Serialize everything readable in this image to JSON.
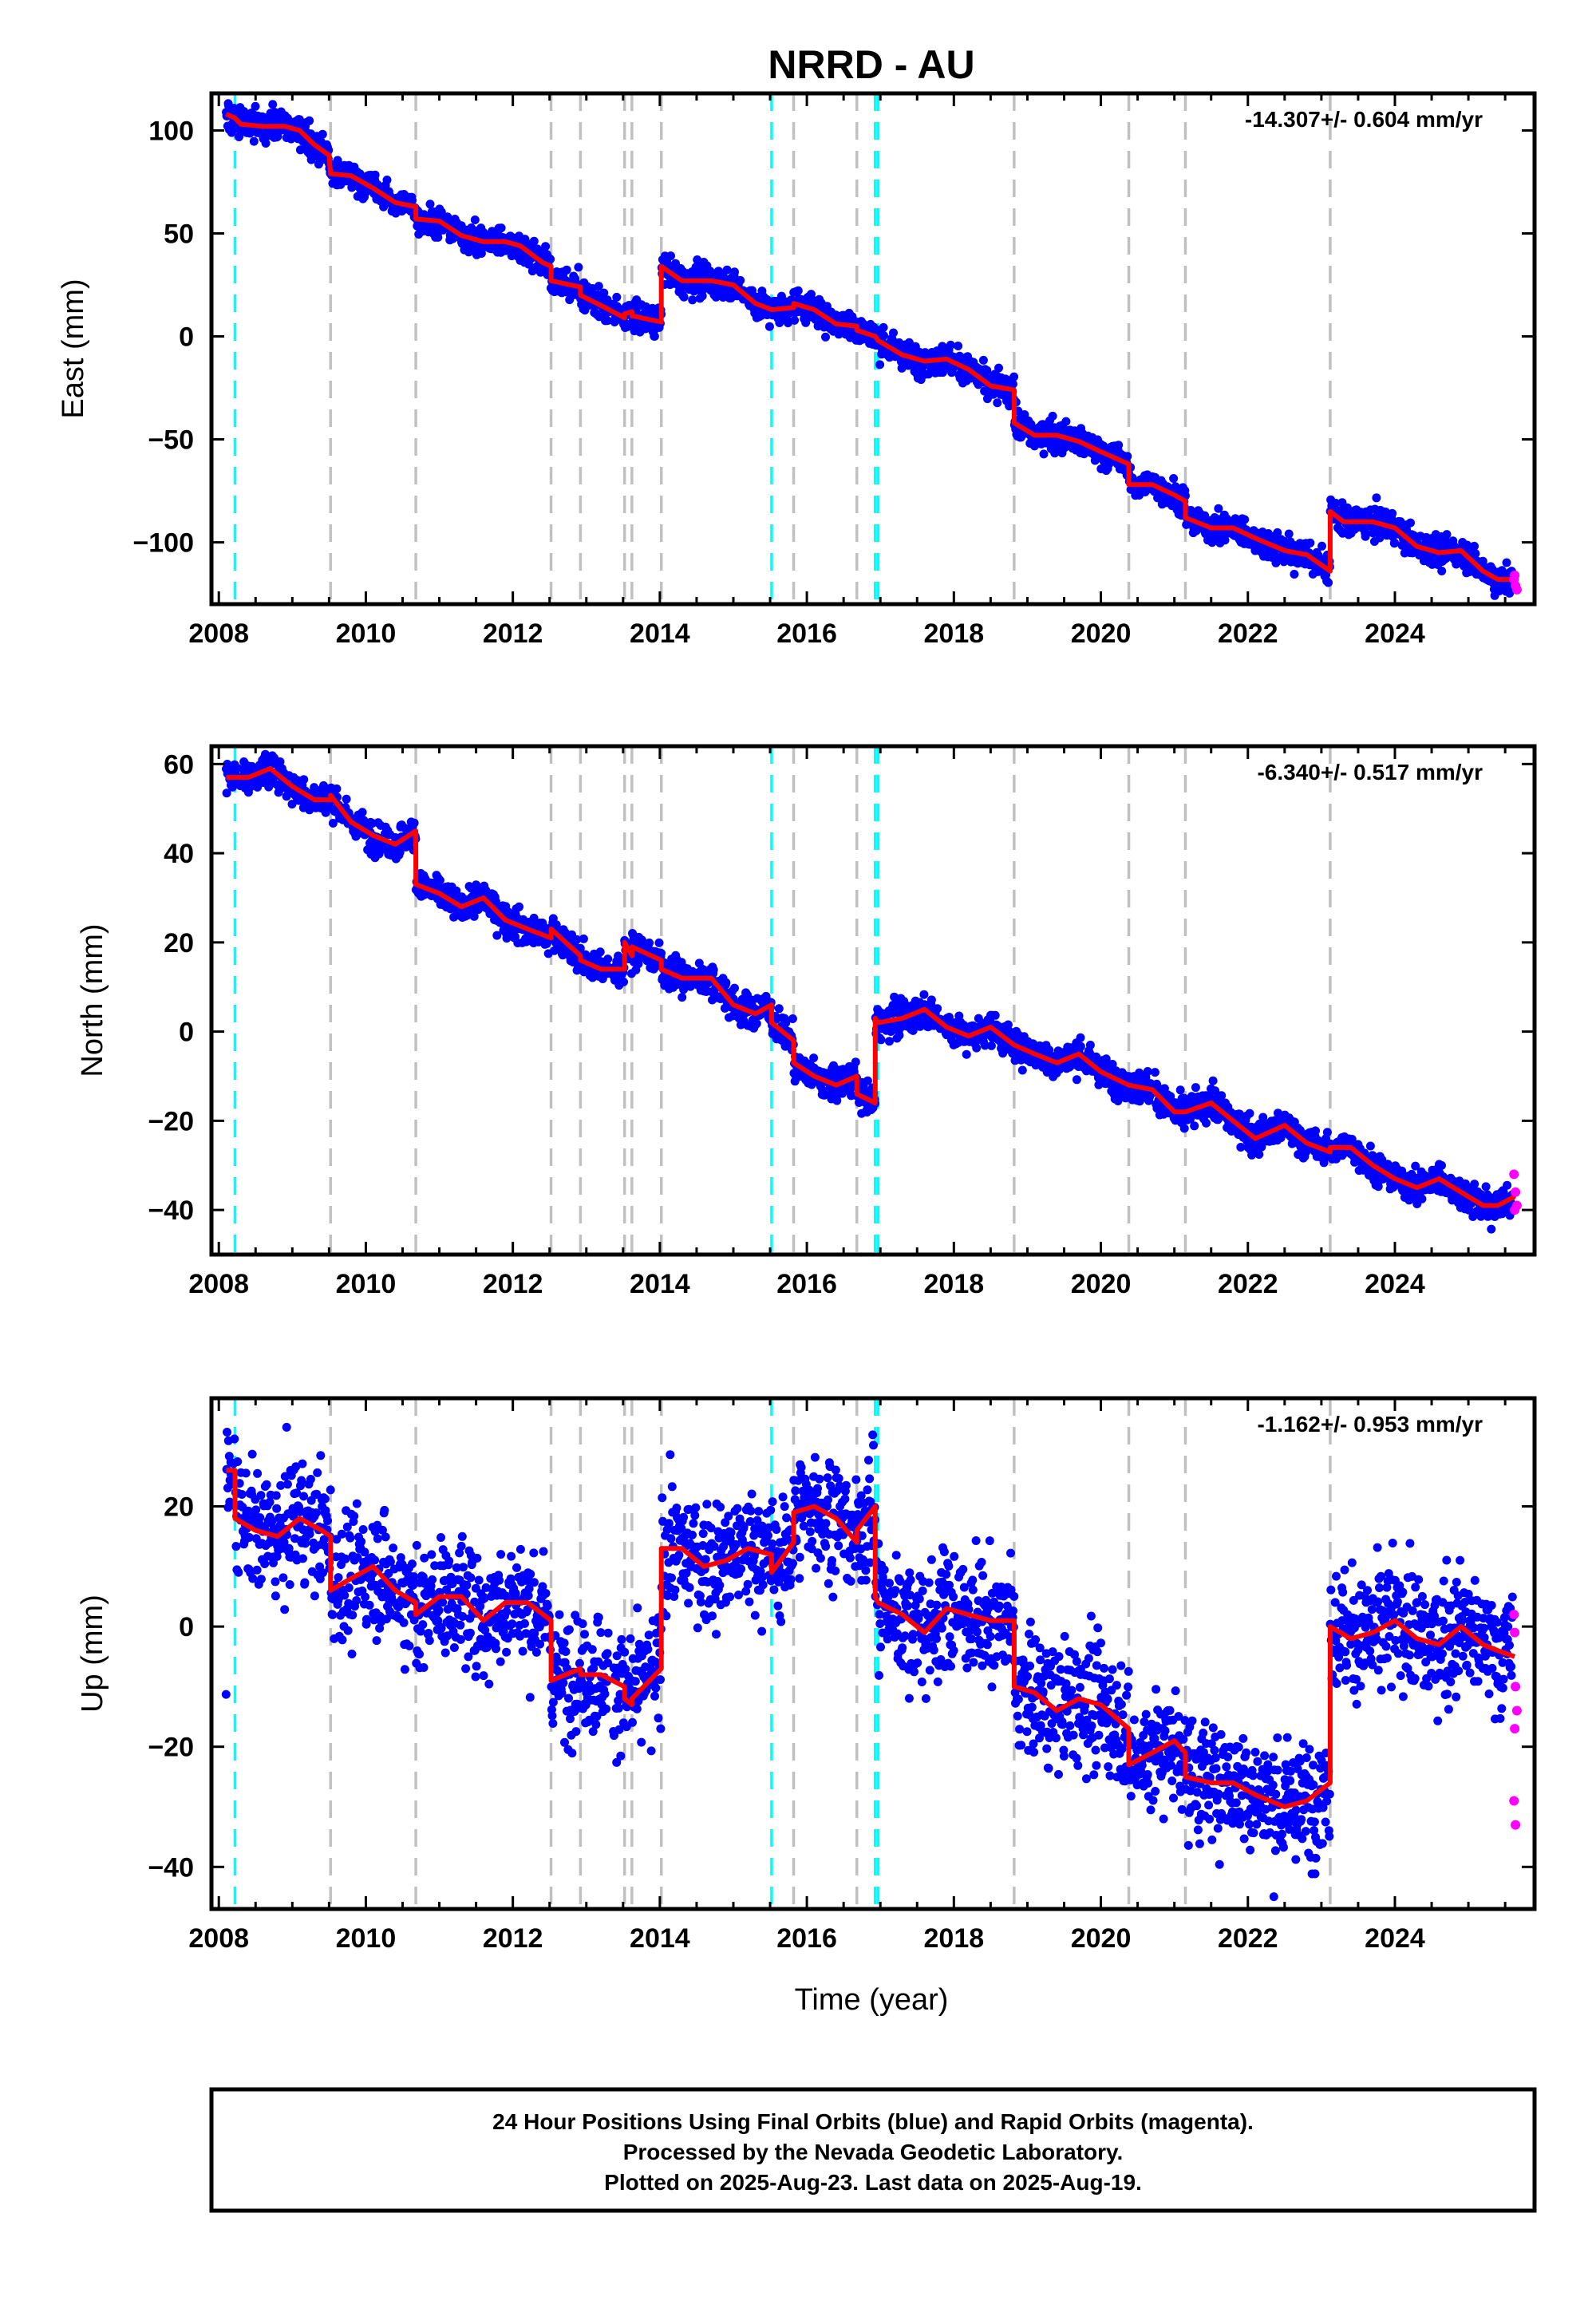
{
  "chart_data": {
    "type": "scatter",
    "title": "NRRD - AU",
    "xlabel": "Time (year)",
    "xlim": [
      2007.9,
      2025.9
    ],
    "x_ticks": [
      2008,
      2010,
      2012,
      2014,
      2016,
      2018,
      2020,
      2022,
      2024
    ],
    "x_tick_labels": [
      "2008",
      "2010",
      "2012",
      "2014",
      "2016",
      "2018",
      "2020",
      "2022",
      "2024"
    ],
    "grid": false,
    "colors": {
      "final_orbits": "#0000ff",
      "rapid_orbits": "#ff00ff",
      "model": "#ff0000",
      "equipment_change": "#00ffff",
      "possible_offset": "#c0c0c0"
    },
    "steps_cyan": [
      2008.22,
      2015.52,
      2016.93,
      2016.97
    ],
    "steps_gray": [
      2009.52,
      2010.68,
      2012.52,
      2012.92,
      2013.52,
      2013.62,
      2014.02,
      2015.82,
      2016.68,
      2018.82,
      2020.38,
      2021.15,
      2023.12
    ],
    "panels": [
      {
        "ylabel": "East (mm)",
        "ylim": [
          -130,
          118
        ],
        "y_ticks": [
          100,
          50,
          0,
          -50,
          -100
        ],
        "y_tick_labels": [
          "100",
          "50",
          "0",
          "−50",
          "−100"
        ],
        "rate": "-14.307+/- 0.604 mm/yr",
        "scatter": 5,
        "model": [
          [
            2008.1,
            108
          ],
          [
            2008.22,
            106
          ],
          [
            2008.3,
            103
          ],
          [
            2008.6,
            102
          ],
          [
            2008.9,
            102
          ],
          [
            2009.1,
            100
          ],
          [
            2009.3,
            93
          ],
          [
            2009.5,
            88
          ],
          [
            2009.52,
            79
          ],
          [
            2009.8,
            78
          ],
          [
            2010.1,
            72
          ],
          [
            2010.4,
            65
          ],
          [
            2010.68,
            63
          ],
          [
            2010.68,
            57
          ],
          [
            2011.0,
            56
          ],
          [
            2011.3,
            49
          ],
          [
            2011.6,
            46
          ],
          [
            2011.9,
            46
          ],
          [
            2012.1,
            44
          ],
          [
            2012.4,
            36
          ],
          [
            2012.52,
            34
          ],
          [
            2012.52,
            27
          ],
          [
            2012.92,
            24
          ],
          [
            2012.92,
            20
          ],
          [
            2013.2,
            15
          ],
          [
            2013.52,
            9
          ],
          [
            2013.52,
            11
          ],
          [
            2013.62,
            12
          ],
          [
            2013.62,
            10
          ],
          [
            2014.02,
            7
          ],
          [
            2014.02,
            34
          ],
          [
            2014.3,
            27
          ],
          [
            2014.7,
            27
          ],
          [
            2015.0,
            25
          ],
          [
            2015.3,
            16
          ],
          [
            2015.52,
            13
          ],
          [
            2015.52,
            13
          ],
          [
            2015.82,
            14
          ],
          [
            2015.82,
            16
          ],
          [
            2016.1,
            13
          ],
          [
            2016.4,
            6
          ],
          [
            2016.68,
            5
          ],
          [
            2016.68,
            3
          ],
          [
            2016.93,
            0
          ],
          [
            2016.97,
            -2
          ],
          [
            2017.3,
            -9
          ],
          [
            2017.6,
            -12
          ],
          [
            2017.9,
            -11
          ],
          [
            2018.2,
            -16
          ],
          [
            2018.5,
            -24
          ],
          [
            2018.82,
            -26
          ],
          [
            2018.82,
            -42
          ],
          [
            2019.1,
            -48
          ],
          [
            2019.4,
            -48
          ],
          [
            2019.7,
            -51
          ],
          [
            2020.0,
            -56
          ],
          [
            2020.38,
            -62
          ],
          [
            2020.38,
            -72
          ],
          [
            2020.7,
            -72
          ],
          [
            2021.0,
            -77
          ],
          [
            2021.15,
            -80
          ],
          [
            2021.15,
            -88
          ],
          [
            2021.5,
            -93
          ],
          [
            2021.8,
            -93
          ],
          [
            2022.1,
            -98
          ],
          [
            2022.5,
            -104
          ],
          [
            2022.8,
            -106
          ],
          [
            2023.12,
            -114
          ],
          [
            2023.12,
            -85
          ],
          [
            2023.3,
            -90
          ],
          [
            2023.7,
            -90
          ],
          [
            2024.0,
            -93
          ],
          [
            2024.3,
            -102
          ],
          [
            2024.6,
            -105
          ],
          [
            2024.9,
            -104
          ],
          [
            2025.2,
            -114
          ],
          [
            2025.4,
            -118
          ],
          [
            2025.63,
            -118
          ]
        ],
        "rapid": [
          [
            2025.62,
            -118
          ],
          [
            2025.64,
            -121
          ],
          [
            2025.66,
            -123
          ],
          [
            2025.63,
            -116
          ]
        ]
      },
      {
        "ylabel": "North (mm)",
        "ylim": [
          -50,
          64
        ],
        "y_ticks": [
          60,
          40,
          20,
          0,
          -20,
          -40
        ],
        "y_tick_labels": [
          "60",
          "40",
          "20",
          "0",
          "−20",
          "−40"
        ],
        "rate": "-6.340+/- 0.517 mm/yr",
        "scatter": 2.5,
        "model": [
          [
            2008.1,
            57
          ],
          [
            2008.22,
            57
          ],
          [
            2008.4,
            57
          ],
          [
            2008.7,
            59
          ],
          [
            2009.0,
            55
          ],
          [
            2009.3,
            52
          ],
          [
            2009.52,
            52
          ],
          [
            2009.52,
            53
          ],
          [
            2009.8,
            47
          ],
          [
            2010.1,
            44
          ],
          [
            2010.4,
            42
          ],
          [
            2010.68,
            45
          ],
          [
            2010.68,
            33
          ],
          [
            2011.0,
            31
          ],
          [
            2011.3,
            28
          ],
          [
            2011.6,
            30
          ],
          [
            2011.9,
            25
          ],
          [
            2012.2,
            23
          ],
          [
            2012.52,
            21
          ],
          [
            2012.52,
            23
          ],
          [
            2012.92,
            17
          ],
          [
            2012.92,
            16
          ],
          [
            2013.2,
            14
          ],
          [
            2013.52,
            14
          ],
          [
            2013.52,
            20
          ],
          [
            2013.62,
            17
          ],
          [
            2013.62,
            19
          ],
          [
            2014.02,
            16
          ],
          [
            2014.02,
            14
          ],
          [
            2014.3,
            12
          ],
          [
            2014.7,
            12
          ],
          [
            2015.0,
            6
          ],
          [
            2015.3,
            4
          ],
          [
            2015.52,
            6
          ],
          [
            2015.52,
            2
          ],
          [
            2015.82,
            -2
          ],
          [
            2015.82,
            -7
          ],
          [
            2016.1,
            -10
          ],
          [
            2016.4,
            -12
          ],
          [
            2016.68,
            -10
          ],
          [
            2016.68,
            -14
          ],
          [
            2016.93,
            -16
          ],
          [
            2016.93,
            3
          ],
          [
            2016.97,
            2
          ],
          [
            2017.3,
            3
          ],
          [
            2017.6,
            5
          ],
          [
            2017.9,
            1
          ],
          [
            2018.2,
            -1
          ],
          [
            2018.5,
            1
          ],
          [
            2018.82,
            -3
          ],
          [
            2018.82,
            -3
          ],
          [
            2019.1,
            -5
          ],
          [
            2019.4,
            -7
          ],
          [
            2019.7,
            -5
          ],
          [
            2020.0,
            -9
          ],
          [
            2020.38,
            -12
          ],
          [
            2020.38,
            -12
          ],
          [
            2020.7,
            -13
          ],
          [
            2021.0,
            -18
          ],
          [
            2021.15,
            -18
          ],
          [
            2021.15,
            -18
          ],
          [
            2021.5,
            -16
          ],
          [
            2021.8,
            -20
          ],
          [
            2022.1,
            -24
          ],
          [
            2022.5,
            -21
          ],
          [
            2022.8,
            -25
          ],
          [
            2023.12,
            -27
          ],
          [
            2023.12,
            -26
          ],
          [
            2023.4,
            -26
          ],
          [
            2023.7,
            -30
          ],
          [
            2024.0,
            -33
          ],
          [
            2024.3,
            -35
          ],
          [
            2024.6,
            -33
          ],
          [
            2024.9,
            -36
          ],
          [
            2025.2,
            -39
          ],
          [
            2025.4,
            -39
          ],
          [
            2025.63,
            -37
          ]
        ],
        "rapid": [
          [
            2025.62,
            -32
          ],
          [
            2025.64,
            -36
          ],
          [
            2025.66,
            -39
          ],
          [
            2025.63,
            -40
          ]
        ]
      },
      {
        "ylabel": "Up (mm)",
        "ylim": [
          -47,
          38
        ],
        "y_ticks": [
          20,
          0,
          -20,
          -40
        ],
        "y_tick_labels": [
          "20",
          "0",
          "−20",
          "−40"
        ],
        "rate": "-1.162+/- 0.953 mm/yr",
        "scatter": 7,
        "model": [
          [
            2008.1,
            26
          ],
          [
            2008.22,
            26
          ],
          [
            2008.22,
            18
          ],
          [
            2008.5,
            16
          ],
          [
            2008.8,
            15
          ],
          [
            2009.1,
            18
          ],
          [
            2009.4,
            16
          ],
          [
            2009.52,
            15
          ],
          [
            2009.52,
            6
          ],
          [
            2009.8,
            8
          ],
          [
            2010.1,
            10
          ],
          [
            2010.4,
            6
          ],
          [
            2010.68,
            4
          ],
          [
            2010.68,
            2
          ],
          [
            2011.0,
            5
          ],
          [
            2011.3,
            5
          ],
          [
            2011.6,
            1
          ],
          [
            2011.9,
            4
          ],
          [
            2012.2,
            4
          ],
          [
            2012.52,
            1
          ],
          [
            2012.52,
            -9
          ],
          [
            2012.92,
            -7
          ],
          [
            2012.92,
            -8
          ],
          [
            2013.2,
            -8
          ],
          [
            2013.52,
            -10
          ],
          [
            2013.52,
            -12
          ],
          [
            2013.62,
            -13
          ],
          [
            2013.62,
            -12
          ],
          [
            2014.02,
            -7
          ],
          [
            2014.02,
            13
          ],
          [
            2014.3,
            13
          ],
          [
            2014.6,
            10
          ],
          [
            2014.9,
            11
          ],
          [
            2015.2,
            13
          ],
          [
            2015.52,
            12
          ],
          [
            2015.52,
            9
          ],
          [
            2015.82,
            14
          ],
          [
            2015.82,
            19
          ],
          [
            2016.1,
            20
          ],
          [
            2016.4,
            18
          ],
          [
            2016.68,
            14
          ],
          [
            2016.68,
            16
          ],
          [
            2016.93,
            20
          ],
          [
            2016.93,
            5
          ],
          [
            2016.97,
            4
          ],
          [
            2017.3,
            2
          ],
          [
            2017.6,
            -1
          ],
          [
            2017.9,
            3
          ],
          [
            2018.2,
            2
          ],
          [
            2018.5,
            1
          ],
          [
            2018.82,
            1
          ],
          [
            2018.82,
            -10
          ],
          [
            2019.1,
            -11
          ],
          [
            2019.4,
            -14
          ],
          [
            2019.7,
            -12
          ],
          [
            2020.0,
            -13
          ],
          [
            2020.38,
            -17
          ],
          [
            2020.38,
            -23
          ],
          [
            2020.7,
            -21
          ],
          [
            2021.0,
            -19
          ],
          [
            2021.15,
            -21
          ],
          [
            2021.15,
            -25
          ],
          [
            2021.5,
            -26
          ],
          [
            2021.8,
            -26
          ],
          [
            2022.1,
            -28
          ],
          [
            2022.5,
            -30
          ],
          [
            2022.8,
            -29
          ],
          [
            2023.12,
            -26
          ],
          [
            2023.12,
            0
          ],
          [
            2023.4,
            -2
          ],
          [
            2023.7,
            -1
          ],
          [
            2024.0,
            1
          ],
          [
            2024.3,
            -2
          ],
          [
            2024.6,
            -3
          ],
          [
            2024.9,
            0
          ],
          [
            2025.2,
            -3
          ],
          [
            2025.4,
            -4
          ],
          [
            2025.63,
            -5
          ]
        ],
        "rapid": [
          [
            2025.62,
            2
          ],
          [
            2025.64,
            -10
          ],
          [
            2025.66,
            -14
          ],
          [
            2025.63,
            -17
          ],
          [
            2025.62,
            -29
          ],
          [
            2025.64,
            -33
          ],
          [
            2025.63,
            -1
          ]
        ]
      }
    ],
    "footer": [
      "24 Hour Positions Using Final Orbits (blue) and Rapid Orbits (magenta).",
      "Processed by the Nevada Geodetic Laboratory.",
      "Plotted on 2025-Aug-23. Last data on 2025-Aug-19."
    ]
  }
}
